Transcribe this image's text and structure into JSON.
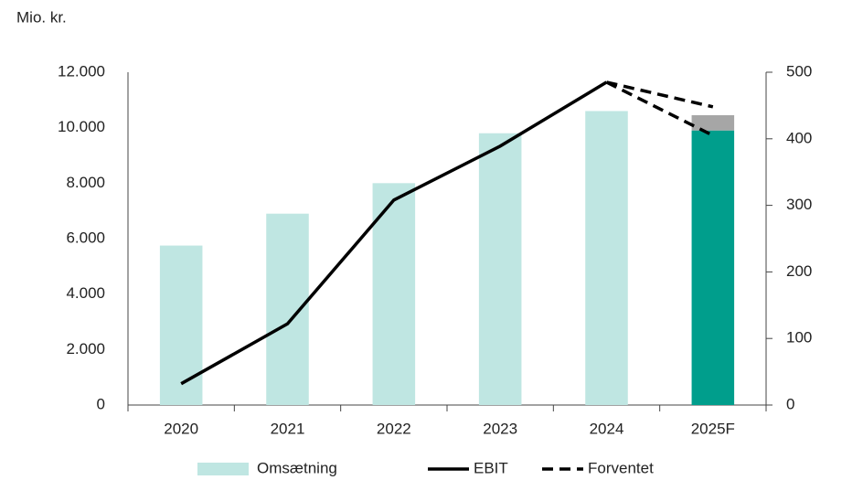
{
  "chart_data": {
    "type": "bar-line",
    "unit_label": "Mio. kr.",
    "categories": [
      "2020",
      "2021",
      "2022",
      "2023",
      "2024",
      "2025F"
    ],
    "ylim": [
      0,
      12000
    ],
    "yticks": [
      {
        "value": 0,
        "label": "0"
      },
      {
        "value": 2000,
        "label": "2.000"
      },
      {
        "value": 4000,
        "label": "4.000"
      },
      {
        "value": 6000,
        "label": "6.000"
      },
      {
        "value": 8000,
        "label": "8.000"
      },
      {
        "value": 10000,
        "label": "10.000"
      },
      {
        "value": 12000,
        "label": "12.000"
      }
    ],
    "y2lim": [
      0,
      500
    ],
    "y2ticks": [
      0,
      100,
      200,
      300,
      400,
      500
    ],
    "bars": {
      "name": "Omsætning",
      "color": "#bfe6e2",
      "values": [
        5750,
        6900,
        8000,
        9800,
        10600,
        9900
      ],
      "point_colors": [
        "#bfe6e2",
        "#bfe6e2",
        "#bfe6e2",
        "#bfe6e2",
        "#bfe6e2",
        "#009e8c"
      ],
      "upper": [
        null,
        null,
        null,
        null,
        null,
        550
      ],
      "upper_color": "#a6a6a6"
    },
    "series": [
      {
        "name": "EBIT",
        "color": "#000000",
        "axis": "y2",
        "dash": false,
        "values": [
          32,
          122,
          308,
          389,
          485,
          null
        ]
      },
      {
        "name": "Forventet",
        "color": "#000000",
        "axis": "y2",
        "dash": true,
        "values": [
          null,
          null,
          null,
          null,
          485,
          448
        ],
        "values_low": [
          null,
          null,
          null,
          null,
          485,
          405
        ]
      }
    ]
  }
}
